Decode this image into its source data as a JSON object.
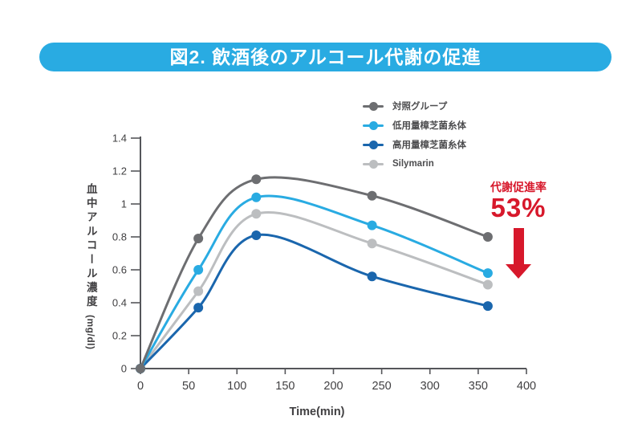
{
  "title": {
    "text": "図2. 飲酒後のアルコール代謝の促進"
  },
  "chart_data": {
    "type": "line",
    "x": [
      0,
      60,
      120,
      240,
      360
    ],
    "series": [
      {
        "name": "対照グループ",
        "color": "#6d6e71",
        "values": [
          0,
          0.79,
          1.15,
          1.05,
          0.8
        ]
      },
      {
        "name": "低用量樟芝菌糸体",
        "color": "#29abe2",
        "values": [
          0,
          0.6,
          1.04,
          0.87,
          0.58
        ]
      },
      {
        "name": "高用量樟芝菌糸体",
        "color": "#1a66ad",
        "values": [
          0,
          0.37,
          0.81,
          0.56,
          0.38
        ]
      },
      {
        "name": "Silymarin",
        "color": "#bcbec0",
        "values": [
          0,
          0.47,
          0.94,
          0.76,
          0.51
        ]
      }
    ],
    "xlabel": "Time(min)",
    "ylabel": "血中アルコール濃度",
    "ylabel_unit": "(mg/dl)",
    "xlim": [
      0,
      400
    ],
    "ylim": [
      0,
      1.4
    ],
    "x_ticks": [
      0,
      50,
      100,
      150,
      200,
      250,
      300,
      350,
      400
    ],
    "y_ticks": [
      0,
      0.2,
      0.4,
      0.6,
      0.8,
      1,
      1.2,
      1.4
    ],
    "grid": false,
    "legend_position": "top-center"
  },
  "annotation": {
    "label": "代謝促進率",
    "value": "53%"
  },
  "colors": {
    "banner": "#29abe2",
    "annotation_red": "#d7182b",
    "axis": "#55565a",
    "tick_text": "#414042"
  }
}
